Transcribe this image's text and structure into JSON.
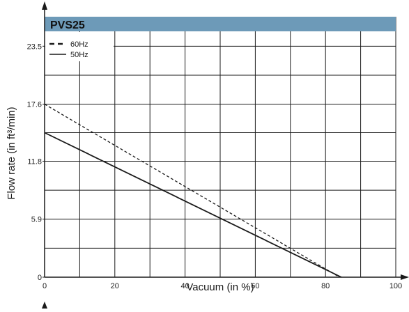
{
  "chart_data": {
    "type": "line",
    "title": "PVS25",
    "xlabel": "Vacuum (in %)",
    "ylabel": "Flow rate (in ft³/min)",
    "xlim": [
      0,
      100
    ],
    "ylim": [
      0,
      26.5
    ],
    "x_ticks": [
      0,
      20,
      40,
      60,
      80,
      100
    ],
    "x_tick_labels": [
      "0",
      "20",
      "40",
      "60",
      "80",
      "100"
    ],
    "y_ticks": [
      0,
      5.9,
      11.8,
      17.6,
      23.5
    ],
    "y_tick_labels": [
      "0",
      "5.9",
      "11.8",
      "17.6",
      "23.5"
    ],
    "grid": true,
    "legend_position": "top-left",
    "series": [
      {
        "name": "60Hz",
        "style": "dashed",
        "x": [
          0,
          84
        ],
        "y": [
          17.6,
          0
        ]
      },
      {
        "name": "50Hz",
        "style": "solid",
        "x": [
          0,
          84.5
        ],
        "y": [
          14.7,
          0
        ]
      }
    ],
    "colors": {
      "line": "#1a1a1a",
      "grid": "#1a1a1a",
      "banner": "#6d9ab8"
    }
  }
}
